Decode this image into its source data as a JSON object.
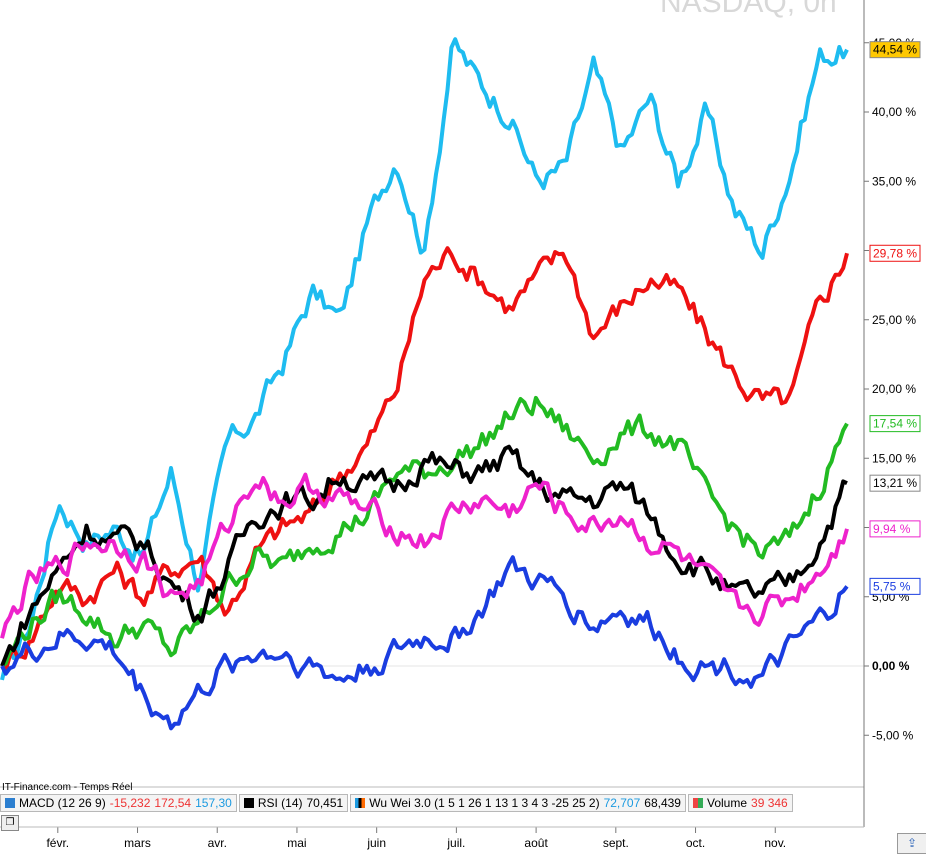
{
  "watermark": "NASDAQ, 0n",
  "source": "IT-Finance.com - Temps Réel",
  "indicators": [
    {
      "label": "MACD (12 26 9)",
      "v1": "-15,232",
      "v2": "172,54",
      "v3": "157,30",
      "color": "#2c7fd0"
    },
    {
      "label": "RSI (14)",
      "v1": "70,451",
      "color": "#000000"
    },
    {
      "label": "Wu Wei 3.0 (1 5 1 26 1 13 1 3 4 3 -25 25 2)",
      "v1": "72,707",
      "v2": "68,439",
      "color": "#ff6a00"
    },
    {
      "label": "Volume",
      "v1": "39 346",
      "color": "#33aa55"
    }
  ],
  "chart_data": {
    "type": "line",
    "x_ticks": [
      "févr.",
      "mars",
      "avr.",
      "mai",
      "juin",
      "juil.",
      "août",
      "sept.",
      "oct.",
      "nov."
    ],
    "y_ticks": [
      "45,00 %",
      "40,00 %",
      "35,00 %",
      "30,00 %",
      "25,00 %",
      "20,00 %",
      "15,00 %",
      "10,00 %",
      "5,00 %",
      "0,00 %",
      "-5,00 %"
    ],
    "y_values": [
      45,
      40,
      35,
      30,
      25,
      20,
      15,
      10,
      5,
      0,
      -5
    ],
    "ylim": [
      -8,
      48
    ],
    "months": 10.6,
    "series": [
      {
        "color": "#1ebcf0",
        "last_label": "44,54 %",
        "label_bg": "#ffc800",
        "label_color": "#000000",
        "values": [
          -1,
          3,
          12,
          9,
          10,
          8,
          14,
          6,
          16,
          18,
          22,
          27,
          25,
          32,
          37,
          30,
          45,
          42,
          40,
          35,
          36,
          43,
          37,
          41,
          35,
          40,
          33,
          30,
          36,
          44,
          44.5
        ]
      },
      {
        "color": "#ee1111",
        "last_label": "29,78 %",
        "label_bg": "#ffffff",
        "label_color": "#ee1111",
        "values": [
          0,
          2,
          6,
          5,
          7,
          5,
          7,
          8,
          4,
          8,
          10,
          11,
          14,
          16,
          20,
          28,
          30,
          28,
          26,
          28,
          30,
          24,
          26,
          28,
          27,
          24,
          21,
          19,
          19,
          26,
          29.8
        ]
      },
      {
        "color": "#22bb22",
        "last_label": "17,54 %",
        "label_bg": "#ffffff",
        "label_color": "#22bb22",
        "values": [
          0,
          3,
          5,
          4,
          2,
          3,
          1,
          3,
          6,
          8,
          7,
          9,
          10,
          11,
          14,
          14,
          15,
          16,
          18,
          19,
          17,
          15,
          17,
          17,
          16,
          12,
          10,
          8,
          9,
          13,
          17.5
        ]
      },
      {
        "color": "#000000",
        "last_label": "13,21 %",
        "label_bg": "#ffffff",
        "label_color": "#000000",
        "values": [
          0,
          4,
          7,
          10,
          9,
          9,
          6,
          4,
          7,
          11,
          12,
          12,
          14,
          13,
          13,
          15,
          14,
          14,
          15,
          13,
          12,
          12,
          13,
          11,
          8,
          7,
          5,
          5,
          6,
          9,
          13.2
        ]
      },
      {
        "color": "#ee22cc",
        "last_label": "9,94 %",
        "label_bg": "#ffffff",
        "label_color": "#ee22cc",
        "values": [
          2,
          6,
          7,
          9,
          9,
          8,
          5,
          6,
          10,
          14,
          12,
          13,
          12,
          11,
          10,
          9,
          11,
          12,
          11,
          13,
          11,
          10,
          11,
          9,
          8,
          6,
          4,
          4,
          5,
          7,
          9.9
        ]
      },
      {
        "color": "#1a3de0",
        "last_label": "5,75 %",
        "label_bg": "#ffffff",
        "label_color": "#1a3de0",
        "values": [
          0,
          1,
          2,
          2,
          1,
          -2,
          -4,
          -2,
          0,
          1,
          1,
          0,
          -1,
          0,
          1,
          2,
          2,
          4,
          7,
          6,
          5,
          3,
          4,
          3,
          1,
          0,
          0,
          -1,
          1,
          3,
          5.75
        ]
      }
    ]
  }
}
